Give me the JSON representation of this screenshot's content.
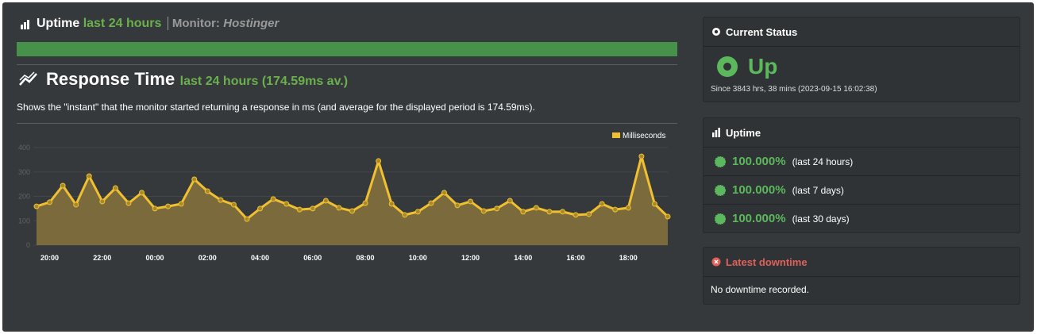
{
  "uptime_header": {
    "label": "Uptime",
    "period": "last 24 hours",
    "monitor_label": "Monitor:",
    "monitor_name": "Hostinger"
  },
  "response_time": {
    "title": "Response Time",
    "period": "last 24 hours",
    "average": "(174.59ms av.)",
    "description": "Shows the \"instant\" that the monitor started returning a response in ms (and average for the displayed period is 174.59ms)."
  },
  "chart_data": {
    "type": "area",
    "categories": [
      null,
      "20:00",
      null,
      null,
      null,
      "22:00",
      null,
      null,
      null,
      "00:00",
      null,
      null,
      null,
      "02:00",
      null,
      null,
      null,
      "04:00",
      null,
      null,
      null,
      "06:00",
      null,
      null,
      null,
      "08:00",
      null,
      null,
      null,
      "10:00",
      null,
      null,
      null,
      "12:00",
      null,
      null,
      null,
      "14:00",
      null,
      null,
      null,
      "16:00",
      null,
      null,
      null,
      "18:00",
      null,
      null,
      null
    ],
    "series": [
      {
        "name": "Milliseconds",
        "color": "#f0c030",
        "values": [
          159,
          176,
          244,
          166,
          283,
          179,
          234,
          172,
          215,
          150,
          159,
          169,
          270,
          221,
          185,
          166,
          107,
          150,
          189,
          169,
          146,
          150,
          182,
          153,
          140,
          172,
          345,
          169,
          124,
          137,
          172,
          215,
          163,
          179,
          140,
          150,
          182,
          137,
          153,
          137,
          137,
          124,
          127,
          169,
          146,
          153,
          364,
          169,
          117
        ]
      }
    ],
    "ylim": [
      0,
      400
    ],
    "yticks": [
      0,
      100,
      200,
      300,
      400
    ],
    "grid": true,
    "legend": "top-right"
  },
  "current_status": {
    "title": "Current Status",
    "status": "Up",
    "since": "Since 3843 hrs, 38 mins (2023-09-15 16:02:38)"
  },
  "uptime": {
    "title": "Uptime",
    "rows": [
      {
        "value": "100.000%",
        "period": "(last 24 hours)"
      },
      {
        "value": "100.000%",
        "period": "(last 7 days)"
      },
      {
        "value": "100.000%",
        "period": "(last 30 days)"
      }
    ]
  },
  "latest_downtime": {
    "title": "Latest downtime",
    "text": "No downtime recorded."
  }
}
